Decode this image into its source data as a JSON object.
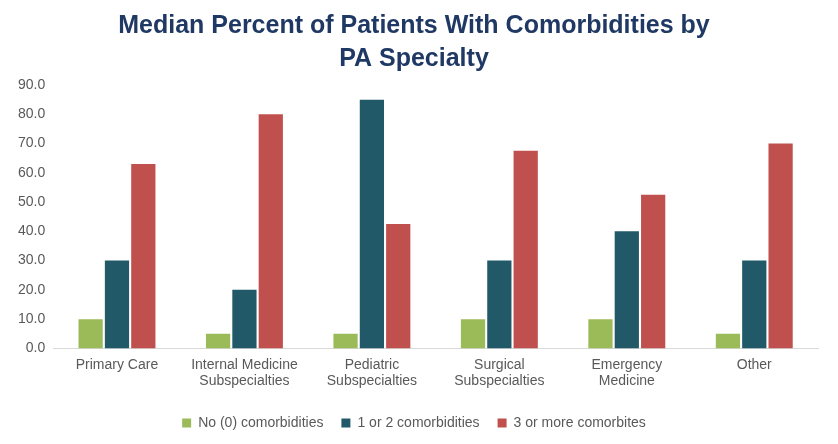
{
  "chart_data": {
    "type": "bar",
    "title": [
      "Median Percent of Patients With Comorbidities by",
      "PA Specialty"
    ],
    "categories": [
      "Primary Care",
      "Internal Medicine Subspecialties",
      "Pediatric Subspecialties",
      "Surgical Subspecialties",
      "Emergency Medicine",
      "Other"
    ],
    "series": [
      {
        "name": "No (0) comorbidities",
        "color": "#9bbb59",
        "values": [
          10,
          5,
          5,
          10,
          10,
          5
        ]
      },
      {
        "name": "1 or 2 comorbidities",
        "color": "#215968",
        "values": [
          30,
          20,
          85,
          30,
          40,
          30
        ]
      },
      {
        "name": "3 or more comorbites",
        "color": "#c0504d",
        "values": [
          63,
          80,
          42.5,
          67.5,
          52.5,
          70
        ]
      }
    ],
    "ylim": [
      0,
      90
    ],
    "yticks": [
      {
        "value": 0,
        "label": "0.0"
      },
      {
        "value": 10,
        "label": "10.0"
      },
      {
        "value": 20,
        "label": "20.0"
      },
      {
        "value": 30,
        "label": "30.0"
      },
      {
        "value": 40,
        "label": "40.0"
      },
      {
        "value": 50,
        "label": "50.0"
      },
      {
        "value": 60,
        "label": "60.0"
      },
      {
        "value": 70,
        "label": "70.0"
      },
      {
        "value": 80,
        "label": "80.0"
      },
      {
        "value": 90,
        "label": "90.0"
      }
    ],
    "grid": false,
    "legend": "bottom"
  }
}
